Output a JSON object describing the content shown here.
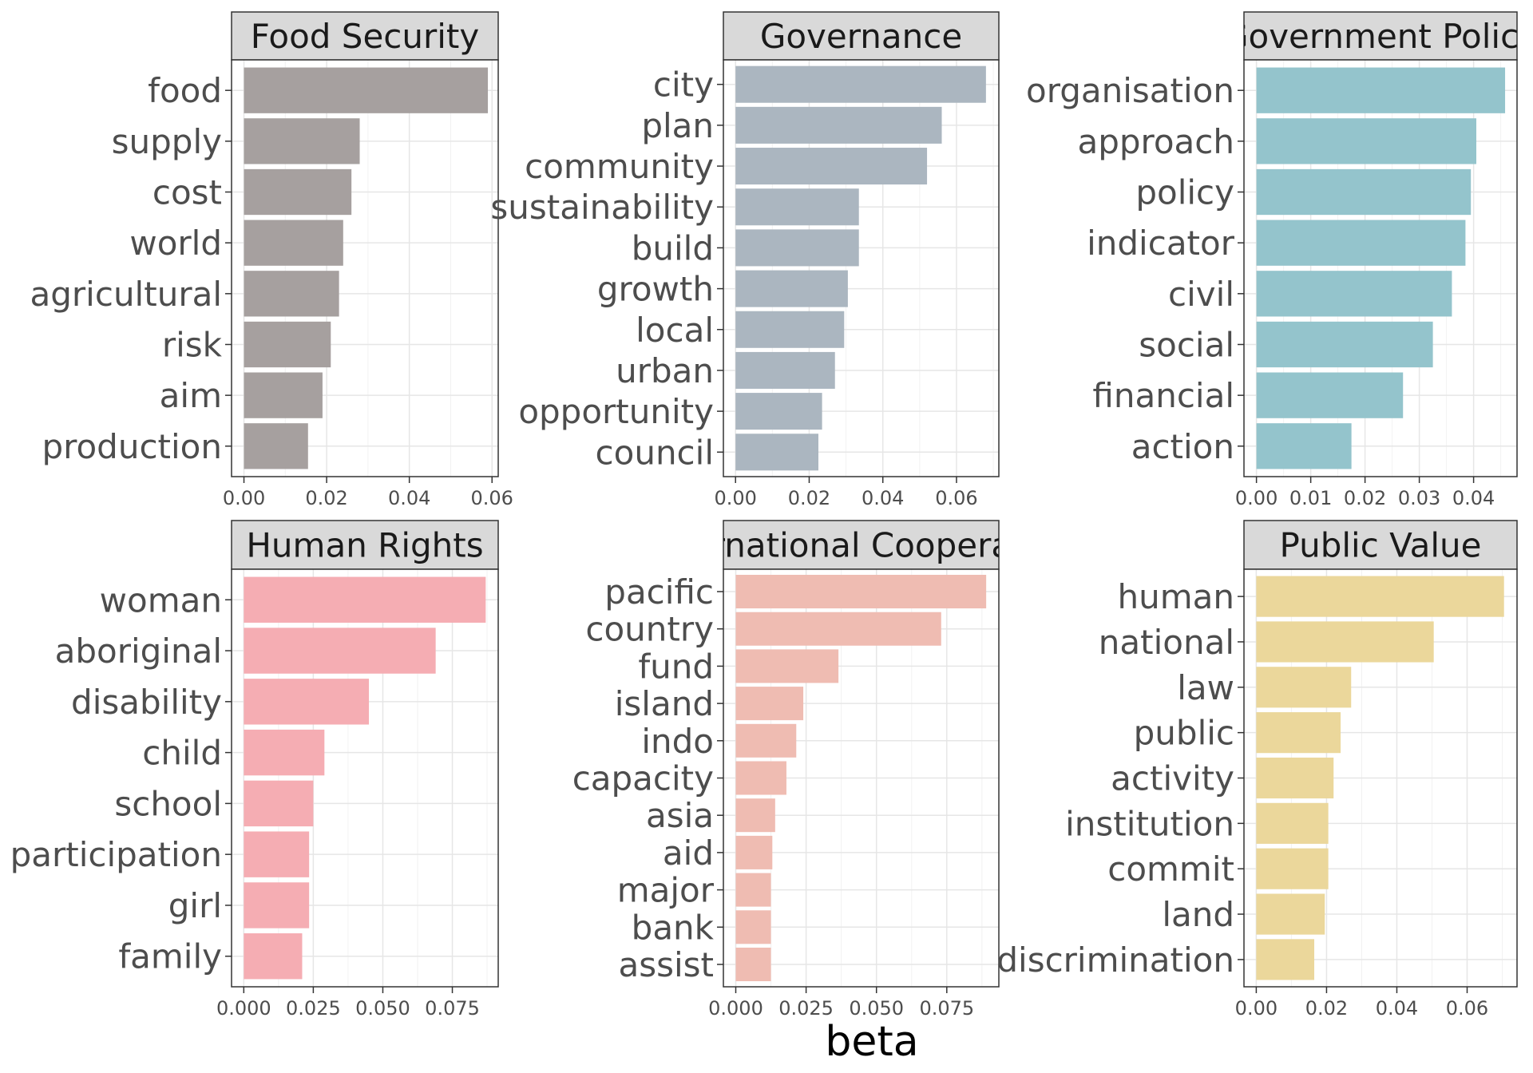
{
  "chart_data": {
    "type": "bar",
    "orientation": "horizontal",
    "xlabel": "beta",
    "grid": true,
    "panels": [
      {
        "title": "Food Security",
        "color": "#a6a09f",
        "categories": [
          "food",
          "supply",
          "cost",
          "world",
          "agricultural",
          "risk",
          "aim",
          "production"
        ],
        "values": [
          0.059,
          0.028,
          0.026,
          0.024,
          0.023,
          0.021,
          0.019,
          0.0155
        ],
        "xlim": [
          -0.003,
          0.0615
        ],
        "xticks": [
          0,
          0.02,
          0.04,
          0.06
        ],
        "xtick_labels": [
          "0.00",
          "0.02",
          "0.04",
          "0.06"
        ]
      },
      {
        "title": "Governance",
        "color": "#abb6c0",
        "categories": [
          "city",
          "plan",
          "community",
          "sustainability",
          "build",
          "growth",
          "local",
          "urban",
          "opportunity",
          "council"
        ],
        "values": [
          0.068,
          0.056,
          0.052,
          0.0335,
          0.0335,
          0.0305,
          0.0295,
          0.027,
          0.0235,
          0.0225
        ],
        "xlim": [
          -0.0033,
          0.0715
        ],
        "xticks": [
          0,
          0.02,
          0.04,
          0.06
        ],
        "xtick_labels": [
          "0.00",
          "0.02",
          "0.04",
          "0.06"
        ]
      },
      {
        "title": "Government Policy",
        "color": "#94c4cc",
        "categories": [
          "organisation",
          "approach",
          "policy",
          "indicator",
          "civil",
          "social",
          "financial",
          "action"
        ],
        "values": [
          0.0458,
          0.0405,
          0.0395,
          0.0385,
          0.036,
          0.0325,
          0.027,
          0.0175
        ],
        "xlim": [
          -0.0023,
          0.048
        ],
        "xticks": [
          0,
          0.01,
          0.02,
          0.03,
          0.04
        ],
        "xtick_labels": [
          "0.00",
          "0.01",
          "0.02",
          "0.03",
          "0.04"
        ]
      },
      {
        "title": "Human Rights",
        "color": "#f5adb3",
        "categories": [
          "woman",
          "aboriginal",
          "disability",
          "child",
          "school",
          "participation",
          "girl",
          "family"
        ],
        "values": [
          0.087,
          0.069,
          0.045,
          0.029,
          0.025,
          0.0235,
          0.0235,
          0.021
        ],
        "xlim": [
          -0.0044,
          0.0915
        ],
        "xticks": [
          0,
          0.025,
          0.05,
          0.075
        ],
        "xtick_labels": [
          "0.000",
          "0.025",
          "0.050",
          "0.075"
        ]
      },
      {
        "title": "International Cooperation",
        "color": "#efbcb2",
        "categories": [
          "pacific",
          "country",
          "fund",
          "island",
          "indo",
          "capacity",
          "asia",
          "aid",
          "major",
          "bank",
          "assist"
        ],
        "values": [
          0.089,
          0.073,
          0.0365,
          0.024,
          0.0215,
          0.018,
          0.014,
          0.013,
          0.0125,
          0.0125,
          0.0125
        ],
        "xlim": [
          -0.0044,
          0.0935
        ],
        "xticks": [
          0,
          0.025,
          0.05,
          0.075
        ],
        "xtick_labels": [
          "0.000",
          "0.025",
          "0.050",
          "0.075"
        ]
      },
      {
        "title": "Public Value",
        "color": "#ebd79b",
        "categories": [
          "human",
          "national",
          "law",
          "public",
          "activity",
          "institution",
          "commit",
          "land",
          "discrimination"
        ],
        "values": [
          0.0705,
          0.0505,
          0.027,
          0.024,
          0.022,
          0.0205,
          0.0205,
          0.0195,
          0.0165
        ],
        "xlim": [
          -0.0035,
          0.0742
        ],
        "xticks": [
          0,
          0.02,
          0.04,
          0.06
        ],
        "xtick_labels": [
          "0.00",
          "0.02",
          "0.04",
          "0.06"
        ]
      }
    ]
  }
}
